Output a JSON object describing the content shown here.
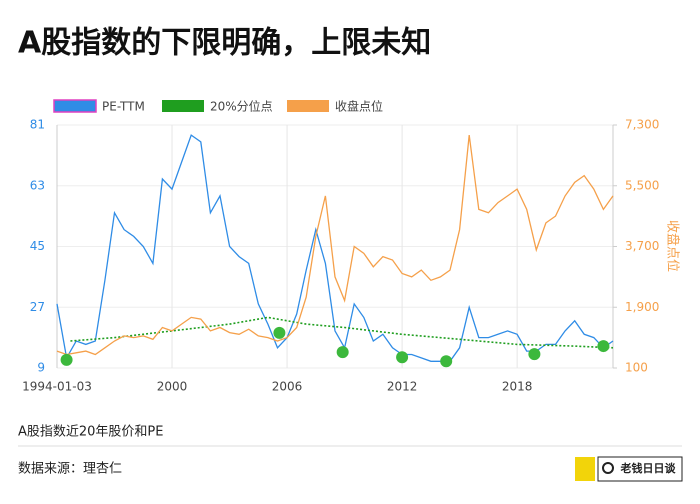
{
  "title": "A股指数的下限明确，上限未知",
  "caption": "A股指数近20年股价和PE",
  "source": "数据来源：理杏仁",
  "logo": "老钱日日谈",
  "chart_data": {
    "type": "line",
    "y2label": "收盘点位",
    "xlim": [
      1994,
      2023
    ],
    "xticks": [
      {
        "value": 1994,
        "label": "1994-01-03"
      },
      2000,
      2006,
      2012,
      2018
    ],
    "ylim": [
      9,
      81
    ],
    "yticks": [
      9,
      27,
      45,
      63,
      81
    ],
    "y2lim": [
      100,
      7300
    ],
    "y2ticks": [
      100,
      {
        "value": 1900,
        "label": "1,900"
      },
      {
        "value": 3700,
        "label": "3,700"
      },
      {
        "value": 5500,
        "label": "5,500"
      },
      {
        "value": 7300,
        "label": "7,300"
      }
    ],
    "grid": true,
    "legend": "top",
    "series": [
      {
        "name": "PE-TTM",
        "color": "#2f8ce6",
        "style": "solid",
        "x": [
          1994,
          1994.5,
          1995,
          1995.5,
          1996,
          1996.5,
          1997,
          1997.5,
          1998,
          1998.5,
          1999,
          1999.5,
          2000,
          2000.5,
          2001,
          2001.5,
          2002,
          2002.5,
          2003,
          2003.5,
          2004,
          2004.5,
          2005,
          2005.5,
          2006,
          2006.5,
          2007,
          2007.5,
          2008,
          2008.5,
          2009,
          2009.5,
          2010,
          2010.5,
          2011,
          2011.5,
          2012,
          2012.5,
          2013,
          2013.5,
          2014,
          2014.5,
          2015,
          2015.5,
          2016,
          2016.5,
          2017,
          2017.5,
          2018,
          2018.5,
          2019,
          2019.5,
          2020,
          2020.5,
          2021,
          2021.5,
          2022,
          2022.5,
          2023
        ],
        "values": [
          28,
          12,
          17,
          16,
          17,
          35,
          55,
          50,
          48,
          45,
          40,
          65,
          62,
          70,
          78,
          76,
          55,
          60,
          45,
          42,
          40,
          28,
          22,
          15,
          18,
          25,
          38,
          50,
          40,
          20,
          15,
          28,
          24,
          17,
          19,
          15,
          13,
          13,
          12,
          11,
          11,
          11,
          15,
          27,
          18,
          18,
          19,
          20,
          19,
          14,
          14,
          16,
          16,
          20,
          23,
          19,
          18,
          15,
          17
        ]
      },
      {
        "name": "20%分位点",
        "color": "#1f9e1f",
        "style": "dashed",
        "x": [
          1994.7,
          1997,
          2000,
          2003,
          2005,
          2007,
          2009,
          2012,
          2015,
          2018,
          2021,
          2023
        ],
        "values": [
          17,
          18,
          20,
          22,
          24,
          22,
          21,
          19,
          17.5,
          16,
          15.5,
          15
        ]
      },
      {
        "name": "收盘点位",
        "color": "#f5a04a",
        "style": "solid",
        "axis": "y2",
        "x": [
          1994,
          1994.5,
          1995,
          1995.5,
          1996,
          1996.5,
          1997,
          1997.5,
          1998,
          1998.5,
          1999,
          1999.5,
          2000,
          2000.5,
          2001,
          2001.5,
          2002,
          2002.5,
          2003,
          2003.5,
          2004,
          2004.5,
          2005,
          2005.5,
          2006,
          2006.5,
          2007,
          2007.5,
          2008,
          2008.5,
          2009,
          2009.5,
          2010,
          2010.5,
          2011,
          2011.5,
          2012,
          2012.5,
          2013,
          2013.5,
          2014,
          2014.5,
          2015,
          2015.5,
          2016,
          2016.5,
          2017,
          2017.5,
          2018,
          2018.5,
          2019,
          2019.5,
          2020,
          2020.5,
          2021,
          2021.5,
          2022,
          2022.5,
          2023
        ],
        "values": [
          600,
          500,
          550,
          600,
          500,
          700,
          900,
          1050,
          1000,
          1050,
          950,
          1300,
          1200,
          1400,
          1600,
          1550,
          1200,
          1300,
          1150,
          1100,
          1250,
          1050,
          1000,
          900,
          1000,
          1300,
          2200,
          4000,
          5200,
          2800,
          2100,
          3700,
          3500,
          3100,
          3400,
          3300,
          2900,
          2800,
          3000,
          2700,
          2800,
          3000,
          4200,
          7000,
          4800,
          4700,
          5000,
          5200,
          5400,
          4800,
          3600,
          4400,
          4600,
          5200,
          5600,
          5800,
          5400,
          4800,
          5200
        ]
      }
    ],
    "markers": {
      "color": "#3cb83c",
      "x": [
        1994.5,
        2005.6,
        2008.9,
        2012.0,
        2014.3,
        2018.9,
        2022.5
      ],
      "values": [
        11.4,
        19.4,
        13.7,
        12.2,
        11,
        13.1,
        15.5
      ]
    }
  }
}
